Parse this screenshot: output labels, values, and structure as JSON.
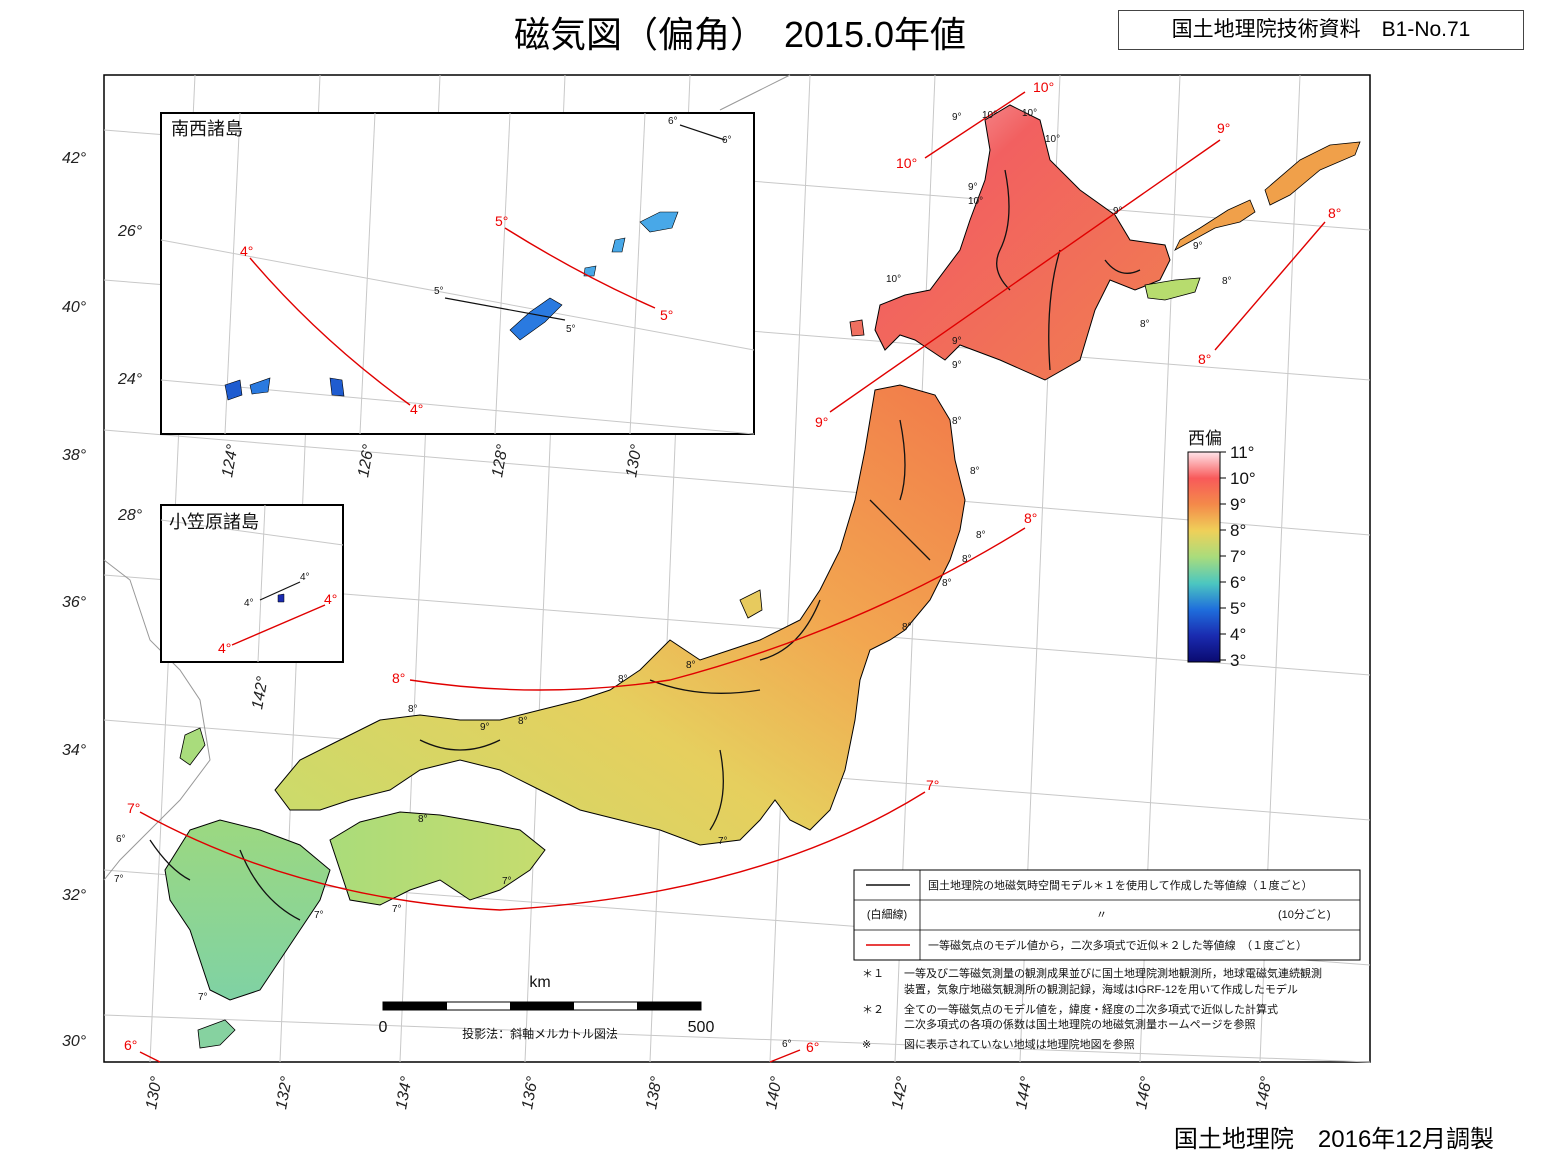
{
  "header": {
    "title": "磁気図（偏角）　2015.0年値",
    "document_id": "国土地理院技術資料　B1-No.71"
  },
  "footer": {
    "publisher": "国土地理院　2016年12月調製"
  },
  "map": {
    "lat_labels": [
      "42°",
      "40°",
      "38°",
      "36°",
      "34°",
      "32°",
      "30°"
    ],
    "lon_labels": [
      "130°",
      "132°",
      "134°",
      "136°",
      "138°",
      "140°",
      "142°",
      "144°",
      "146°",
      "148°"
    ],
    "red_isogonic_labels": [
      "10°",
      "10°",
      "9°",
      "9°",
      "8°",
      "8°",
      "8°",
      "8°",
      "7°",
      "7°",
      "6°",
      "6°"
    ],
    "black_isogonic_labels": [
      "9°",
      "10°",
      "10°",
      "10°",
      "9°",
      "10°",
      "9°",
      "9°",
      "10°",
      "9°",
      "9°",
      "8°",
      "8°",
      "8°",
      "8°",
      "8°",
      "8°",
      "8°",
      "8°",
      "8°",
      "8°",
      "9°",
      "8°",
      "8°",
      "8°",
      "7°",
      "7°",
      "6°",
      "7°",
      "7°",
      "7°",
      "7°",
      "6°"
    ],
    "colors": {
      "red_isogonic": "#e00000",
      "black_isogonic": "#111111",
      "land_fill": "#f0a04a"
    }
  },
  "inset_ryukyu": {
    "title": "南西諸島",
    "lat_labels": [
      "26°",
      "24°"
    ],
    "lon_labels": [
      "124°",
      "126°",
      "128°",
      "130°"
    ],
    "red_labels": [
      "4°",
      "4°",
      "5°",
      "5°"
    ],
    "black_labels": [
      "6°",
      "6°",
      "5°",
      "5°"
    ]
  },
  "inset_ogasawara": {
    "title": "小笠原諸島",
    "lat_labels": [
      "28°"
    ],
    "lon_labels": [
      "142°"
    ],
    "red_labels": [
      "4°",
      "4°"
    ],
    "black_labels": [
      "4°",
      "4°"
    ]
  },
  "colorbar": {
    "title": "西偏",
    "ticks": [
      "11°",
      "10°",
      "9°",
      "8°",
      "7°",
      "6°",
      "5°",
      "4°",
      "3°"
    ],
    "colors": [
      "#ffe4ea",
      "#f85a5a",
      "#f48a4a",
      "#efd059",
      "#a9dc7c",
      "#4cc7c0",
      "#1f6edc",
      "#1a2bb0",
      "#0a0a70"
    ]
  },
  "scale_bar": {
    "unit": "km",
    "start": "0",
    "end": "500",
    "projection": "投影法：斜軸メルカトル図法"
  },
  "legend": {
    "rows": [
      {
        "key": "",
        "text": "国土地理院の地磁気時空間モデル＊１を使用して作成した等値線（１度ごと）"
      },
      {
        "key": "(白細線)",
        "text": "〃",
        "note": "(10分ごと)"
      },
      {
        "key": "",
        "text": "一等磁気点のモデル値から，二次多項式で近似＊２した等値線　（１度ごと）"
      }
    ],
    "notes": [
      {
        "mark": "＊１",
        "lines": [
          "一等及び二等磁気測量の観測成果並びに国土地理院測地観測所，地球電磁気連続観測",
          "装置，気象庁地磁気観測所の観測記録，海域はIGRF-12を用いて作成したモデル"
        ]
      },
      {
        "mark": "＊２",
        "lines": [
          "全ての一等磁気点のモデル値を，緯度・経度の二次多項式で近似した計算式",
          "二次多項式の各項の係数は国土地理院の地磁気測量ホームページを参照"
        ]
      },
      {
        "mark": "※",
        "lines": [
          "図に表示されていない地域は地理院地図を参照"
        ]
      }
    ]
  }
}
